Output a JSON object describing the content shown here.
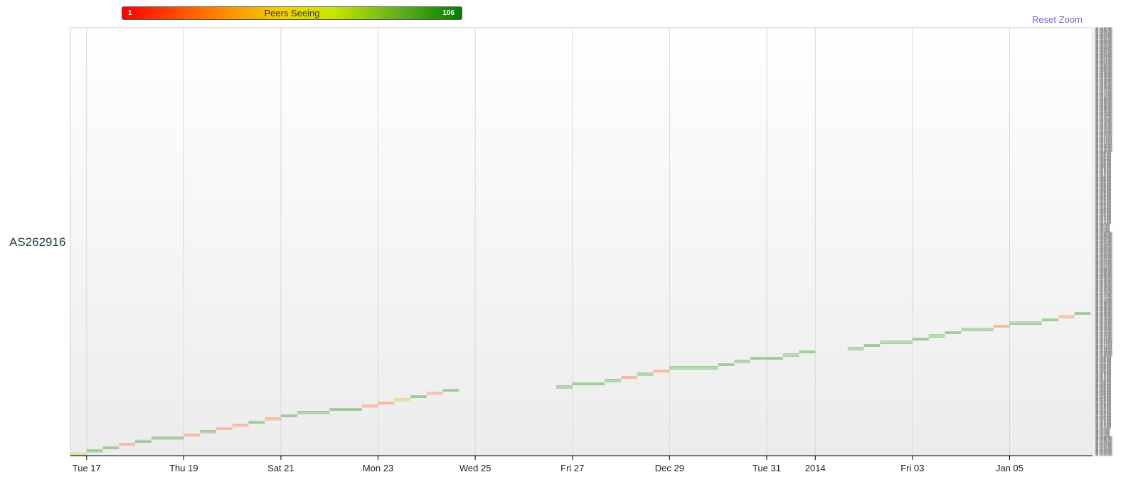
{
  "legend": {
    "title": "Peers Seeing",
    "min_label": "1",
    "max_label": "106",
    "min_color": "#ff0000",
    "max_color": "#008000"
  },
  "reset_zoom_label": "Reset Zoom",
  "chart_data": {
    "type": "heatmap",
    "title": "",
    "ylabel": "AS262916",
    "x_ticks": [
      "Tue 17",
      "Thu 19",
      "Sat 21",
      "Mon 23",
      "Wed 25",
      "Fri 27",
      "Dec 29",
      "Tue 31",
      "2014",
      "Fri 03",
      "Jan 05"
    ],
    "x_tick_dates": [
      "2013-12-17",
      "2013-12-19",
      "2013-12-21",
      "2013-12-23",
      "2013-12-25",
      "2013-12-27",
      "2013-12-29",
      "2013-12-31",
      "2014-01-01",
      "2014-01-03",
      "2014-01-05"
    ],
    "xlim": [
      "2013-12-16 16:00",
      "2014-01-06 18:00"
    ],
    "color_scale": {
      "label": "Peers Seeing",
      "min": 1,
      "max": 106,
      "colors": [
        "#ff0000",
        "#008000"
      ]
    },
    "rows_per_block": 4,
    "prefixes": [
      "192.133.232.0/24",
      "192.133.233.0/24",
      "192.133.234.0/24",
      "192.133.235.0/24",
      "192.133.236.0/24",
      "192.133.237.0/24",
      "192.133.238.0/24",
      "192.133.239.0/24",
      "192.133.240.0/24",
      "192.133.241.0/24",
      "192.133.242.0/24",
      "192.133.243.0/24",
      "192.133.244.0/24",
      "192.133.245.0/24",
      "192.133.246.0/24",
      "192.133.247.0/24",
      "192.133.248.0/24",
      "192.133.249.0/24",
      "192.133.250.0/24",
      "192.133.251.0/24",
      "192.133.252.0/24",
      "192.133.253.0/24",
      "192.133.254.0/24",
      "192.133.255.0/24",
      "192.134.0.0/24",
      "192.134.1.0/24",
      "192.134.2.0/24",
      "192.134.3.0/24",
      "192.134.4.0/24",
      "192.134.5.0/24",
      "192.134.6.0/24",
      "192.134.7.0/24",
      "192.134.8.0/24",
      "192.134.9.0/24",
      "192.134.10.0/24",
      "192.134.11.0/24",
      "192.134.12.0/24",
      "192.134.13.0/24",
      "192.134.14.0/24",
      "192.134.15.0/24",
      "192.134.16.0/24",
      "192.134.17.0/24",
      "192.134.18.0/24",
      "192.134.19.0/24",
      "192.134.20.0/24",
      "192.134.21.0/24",
      "192.134.22.0/24",
      "192.134.23.0/24",
      "192.134.24.0/24",
      "192.134.25.0/24",
      "192.134.26.0/24",
      "192.134.27.0/24",
      "192.134.28.0/24",
      "192.134.29.0/24",
      "192.134.30.0/24",
      "192.134.31.0/24",
      "192.134.32.0/24",
      "192.134.33.0/24",
      "192.134.34.0/24",
      "192.134.35.0/24",
      "192.134.36.0/24",
      "192.134.37.0/24",
      "192.134.38.0/24",
      "192.134.39.0/24",
      "192.134.40.0/24",
      "192.134.41.0/24",
      "192.134.42.0/24",
      "192.134.43.0/24",
      "192.134.44.0/24",
      "192.134.45.0/24",
      "192.134.46.0/24",
      "192.134.47.0/24",
      "192.134.48.0/24",
      "192.134.49.0/24",
      "192.134.50.0/24",
      "192.134.51.0/24",
      "192.134.52.0/24",
      "192.134.53.0/24",
      "192.134.54.0/24",
      "192.134.55.0/24",
      "192.134.56.0/24",
      "192.134.57.0/24",
      "192.134.58.0/24",
      "192.134.59.0/24",
      "192.134.60.0/24",
      "192.134.61.0/24",
      "192.134.62.0/24",
      "192.134.63.0/24",
      "192.134.64.0/24",
      "192.134.65.0/24",
      "192.134.66.0/24",
      "192.134.67.0/24",
      "192.134.68.0/24",
      "192.134.69.0/24",
      "192.134.70.0/24",
      "192.134.71.0/24",
      "192.134.72.0/24",
      "192.134.73.0/24",
      "192.134.74.0/24",
      "192.134.75.0/24",
      "192.134.76.0/24",
      "192.134.77.0/24",
      "192.134.78.0/24",
      "192.134.79.0/24",
      "192.134.80.0/24",
      "192.134.81.0/24",
      "192.134.82.0/24",
      "192.134.83.0/24",
      "192.134.84.0/24",
      "192.134.85.0/24",
      "192.134.86.0/24",
      "192.134.87.0/24",
      "192.134.88.0/24",
      "192.134.89.0/24",
      "192.134.90.0/24",
      "192.134.91.0/24",
      "192.134.92.0/24",
      "192.134.93.0/24",
      "192.134.94.0/24",
      "192.134.95.0/24",
      "192.134.96.0/24",
      "192.134.97.0/24",
      "192.134.98.0/24",
      "192.134.99.0/24",
      "192.134.100.0/24",
      "192.134.101.0/24",
      "192.134.102.0/24",
      "192.134.103.0/24",
      "192.134.104.0/24",
      "192.134.105.0/24",
      "192.134.106.0/24",
      "192.134.107.0/24",
      "192.134.108.0/24",
      "192.134.109.0/24",
      "192.134.110.0/24",
      "192.134.111.0/24",
      "192.134.112.0/24",
      "192.134.113.0/24",
      "192.134.114.0/24",
      "192.134.115.0/24",
      "192.134.116.0/24",
      "192.134.117.0/24",
      "192.134.118.0/24",
      "192.134.119.0/24",
      "192.134.120.0/24",
      "192.134.121.0/24",
      "192.134.122.0/24",
      "192.134.123.0/24",
      "192.134.124.0/24",
      "192.134.125.0/24",
      "192.134.126.0/24",
      "192.134.127.0/24",
      "192.134.128.0/24",
      "192.134.129.0/24",
      "192.134.130.0/24",
      "192.134.131.0/24",
      "192.134.132.0/24",
      "192.134.133.0/24",
      "192.134.134.0/24",
      "192.134.135.0/24",
      "192.134.136.0/24",
      "192.134.137.0/24",
      "192.134.138.0/24",
      "192.134.139.0/24",
      "192.134.140.0/24",
      "192.134.141.0/24",
      "192.134.142.0/24",
      "192.134.143.0/24",
      "192.134.144.0/24",
      "192.134.145.0/24",
      "192.134.146.0/24",
      "192.134.147.0/24",
      "192.134.148.0/24",
      "192.134.149.0/24",
      "192.134.150.0/24",
      "192.134.151.0/24",
      "192.134.152.0/24",
      "192.134.153.0/24",
      "192.134.154.0/24",
      "192.134.155.0/24",
      "192.134.156.0/24",
      "192.134.157.0/24",
      "192.134.158.0/24",
      "192.134.159.0/24",
      "192.134.160.0/24",
      "192.134.161.0/24",
      "192.134.162.0/24",
      "192.134.163.0/24",
      "192.134.164.0/24",
      "192.134.165.0/24",
      "192.134.166.0/24",
      "192.134.167.0/24",
      "192.134.168.0/24",
      "192.134.169.0/24",
      "192.134.170.0/24",
      "192.134.171.0/24",
      "192.134.172.0/24",
      "192.134.173.0/24",
      "192.134.174.0/24",
      "192.134.175.0/24",
      "192.134.176.0/24",
      "192.134.177.0/24",
      "192.134.178.0/24",
      "192.134.179.0/24",
      "192.134.180.0/24",
      "192.134.181.0/24",
      "192.134.182.0/24",
      "192.134.183.0/24",
      "192.134.184.0/24",
      "192.134.185.0/24",
      "192.134.186.0/24",
      "192.134.187.0/24",
      "192.134.188.0/24",
      "192.134.189.0/24",
      "192.134.190.0/24",
      "192.134.191.0/24",
      "192.134.192.0/24",
      "192.134.193.0/24",
      "192.134.194.0/24",
      "192.134.195.0/24",
      "192.134.196.0/24",
      "192.134.197.0/24",
      "192.134.198.0/24",
      "192.134.199.0/24",
      "192.134.200.0/24",
      "192.134.201.0/24",
      "192.134.202.0/24",
      "192.134.203.0/24",
      "192.134.204.0/24",
      "192.134.205.0/24",
      "192.134.206.0/24",
      "192.134.207.0/24",
      "192.134.208.0/24",
      "192.134.209.0/24",
      "192.134.210.0/24",
      "192.134.211.0/24",
      "192.134.212.0/24",
      "192.134.213.0/24",
      "192.134.214.0/24",
      "192.134.215.0/24",
      "192.134.216.0/24",
      "192.134.217.0/24",
      "192.134.218.0/24",
      "192.134.219.0/24",
      "192.134.220.0/24",
      "192.134.221.0/24",
      "192.134.222.0/24",
      "192.134.223.0/24",
      "192.134.224.0/24",
      "192.134.225.0/24",
      "192.134.226.0/24",
      "192.134.227.0/24",
      "192.134.228.0/24",
      "192.134.229.0/24",
      "192.134.230.0/24",
      "192.134.231.0/24",
      "192.134.232.0/24",
      "192.134.233.0/24",
      "192.134.234.0/24",
      "192.134.235.0/24",
      "192.134.236.0/24",
      "192.134.237.0/24",
      "192.134.238.0/24",
      "192.134.239.0/24",
      "192.134.240.0/24",
      "192.134.241.0/24",
      "192.134.242.0/24",
      "192.134.243.0/24",
      "192.134.244.0/24",
      "192.134.245.0/24",
      "192.134.246.0/24",
      "192.134.247.0/24",
      "192.134.248.0/24",
      "192.134.249.0/24",
      "192.134.250.0/24",
      "192.134.251.0/24",
      "192.134.252.0/24",
      "192.134.253.0/24",
      "192.134.254.0/24",
      "192.134.255.0/24",
      "192.135.0.0/24",
      "192.135.1.0/24",
      "192.135.2.0/24",
      "192.135.3.0/24",
      "192.135.4.0/24",
      "192.135.5.0/24",
      "192.135.6.0/24",
      "192.135.7.0/24",
      "192.135.8.0/24",
      "192.135.9.0/24",
      "192.135.10.0/24",
      "192.135.11.0/24",
      "192.135.12.0/24",
      "192.135.13.0/24",
      "192.135.14.0/24",
      "192.135.15.0/24",
      "192.135.16.0/24",
      "192.135.17.0/24",
      "192.135.18.0/24",
      "192.135.19.0/24",
      "192.135.20.0/24",
      "192.135.21.0/24",
      "192.135.22.0/24",
      "192.135.23.0/24",
      "192.135.24.0/24",
      "192.135.25.0/24",
      "192.135.26.0/24",
      "192.135.27.0/24",
      "192.135.28.0/24",
      "192.135.29.0/24",
      "192.135.30.0/24",
      "192.135.31.0/24",
      "192.135.32.0/24",
      "192.135.33.0/24",
      "192.135.34.0/24",
      "192.135.35.0/24",
      "192.135.36.0/24",
      "192.135.37.0/24",
      "192.135.38.0/24",
      "192.135.39.0/24",
      "192.135.40.0/24",
      "192.135.41.0/24",
      "192.135.42.0/24",
      "192.135.43.0/24",
      "192.135.44.0/24",
      "192.135.45.0/24",
      "192.135.46.0/24",
      "192.135.47.0/24",
      "192.135.48.0/24",
      "192.135.49.0/24",
      "192.135.50.0/24",
      "192.135.51.0/24",
      "192.135.52.0/24",
      "192.135.53.0/24",
      "192.135.54.0/24",
      "192.135.55.0/24",
      "192.135.56.0/24",
      "192.135.57.0/24",
      "192.135.58.0/24",
      "192.135.59.0/24",
      "192.135.60.0/24",
      "192.135.61.0/24",
      "192.135.62.0/24",
      "192.135.63.0/24",
      "192.135.64.0/24",
      "192.135.65.0/24",
      "192.135.66.0/24",
      "192.135.67.0/24",
      "192.135.68.0/24",
      "192.135.69.0/24",
      "192.135.70.0/24",
      "192.135.71.0/24",
      "192.135.72.0/24",
      "192.135.73.0/24",
      "192.135.74.0/24",
      "192.135.75.0/24",
      "192.135.76.0/24",
      "192.135.77.0/24",
      "192.135.78.0/24",
      "192.135.79.0/24",
      "192.135.80.0/24",
      "192.135.81.0/24",
      "192.135.82.0/24",
      "192.135.83.0/24",
      "192.135.84.0/24",
      "192.135.85.0/24",
      "192.135.86.0/24",
      "192.135.87.0/24",
      "192.135.88.0/24",
      "192.135.89.0/24",
      "192.135.90.0/24",
      "192.135.91.0/24",
      "192.135.92.0/24",
      "192.135.93.0/24",
      "192.135.94.0/24",
      "192.135.95.0/24",
      "192.135.96.0/24",
      "192.135.97.0/24",
      "192.135.98.0/24",
      "192.135.99.0/24",
      "192.135.100.0/24",
      "192.135.101.0/24",
      "192.135.102.0/24",
      "192.135.103.0/24",
      "192.135.104.0/24",
      "192.135.105.0/24",
      "192.135.106.0/24",
      "192.135.107.0/24",
      "192.135.108.0/24",
      "192.135.109.0/24",
      "192.135.110.0/24",
      "192.135.111.0/24",
      "192.135.112.0/24",
      "192.135.113.0/24",
      "192.135.114.0/24",
      "192.135.115.0/24",
      "192.135.116.0/24",
      "192.135.117.0/24",
      "192.135.118.0/24",
      "192.135.119.0/24",
      "192.135.120.0/24",
      "192.135.121.0/24",
      "192.135.122.0/24",
      "192.135.123.0/24",
      "192.135.124.0/24",
      "192.135.125.0/24",
      "192.135.126.0/24",
      "192.135.127.0/24",
      "192.135.128.0/24",
      "192.135.129.0/24",
      "192.135.130.0/24",
      "192.135.131.0/24",
      "192.135.132.0/24",
      "192.135.133.0/24",
      "192.135.134.0/24",
      "192.135.135.0/24",
      "192.135.136.0/24",
      "192.135.137.0/24",
      "192.135.138.0/24",
      "192.135.139.0/24",
      "192.135.140.0/24",
      "192.135.141.0/24",
      "192.135.142.0/24",
      "192.135.143.0/24",
      "192.135.144.0/24",
      "192.135.145.0/24",
      "192.135.146.0/24",
      "192.135.147.0/24",
      "192.135.148.0/24",
      "192.135.149.0/24",
      "192.135.150.0/24",
      "192.135.151.0/24",
      "192.135.152.0/24",
      "192.135.153.0/24",
      "192.135.154.0/24",
      "192.135.155.0/24",
      "192.135.156.0/24",
      "192.135.157.0/24",
      "192.135.158.0/24",
      "192.135.159.0/24",
      "192.135.160.0/24",
      "192.135.161.0/24",
      "192.135.162.0/24",
      "192.135.163.0/24",
      "192.135.164.0/24",
      "192.135.165.0/24",
      "192.135.166.0/24",
      "192.135.167.0/24",
      "192.135.168.0/24",
      "192.135.169.0/24",
      "192.135.170.0/24",
      "192.135.171.0/24",
      "192.135.172.0/24",
      "192.135.173.0/24",
      "192.135.174.0/24",
      "192.135.175.0/24",
      "192.135.176.0/24",
      "192.135.177.0/24",
      "192.135.178.0/24",
      "192.135.179.0/24",
      "192.135.180.0/24",
      "192.135.181.0/24",
      "192.135.182.0/24",
      "192.135.183.0/24",
      "192.135.184.0/24",
      "192.135.185.0/24",
      "192.135.186.0/24",
      "192.135.187.0/24",
      "192.135.188.0/24",
      "192.135.189.0/24",
      "192.135.190.0/24",
      "192.135.191.0/24",
      "192.135.192.0/24",
      "192.135.193.0/24",
      "192.135.194.0/24",
      "192.135.195.0/24",
      "192.135.196.0/24",
      "192.135.197.0/24",
      "192.135.198.0/24",
      "192.135.199.0/24",
      "192.135.200.0/24",
      "192.135.201.0/24",
      "192.135.202.0/24",
      "192.135.203.0/24",
      "192.135.204.0/24",
      "192.135.205.0/24",
      "192.135.206.0/24",
      "192.135.207.0/24",
      "192.135.208.0/24",
      "192.135.209.0/24",
      "192.135.210.0/24",
      "192.135.211.0/24",
      "192.135.212.0/24",
      "192.135.213.0/24",
      "192.135.214.0/24",
      "192.135.215.0/24",
      "192.135.216.0/24",
      "192.135.217.0/24",
      "192.135.218.0/24",
      "192.135.219.0/24",
      "192.135.220.0/24",
      "192.135.221.0/24",
      "192.135.222.0/24",
      "192.135.223.0/24",
      "192.135.224.0/24",
      "192.135.225.0/24",
      "192.135.226.0/24",
      "192.135.227.0/24",
      "192.135.228.0/24",
      "192.135.229.0/24",
      "192.135.230.0/24",
      "192.135.231.0/24",
      "192.135.232.0/24",
      "192.135.233.0/24",
      "192.135.234.0/24",
      "192.135.235.0/24",
      "192.135.236.0/24",
      "192.135.237.0/24",
      "192.135.238.0/24",
      "192.135.239.0/24",
      "192.135.240.0/24",
      "192.135.241.0/24",
      "192.135.242.0/24",
      "192.135.243.0/24",
      "192.135.244.0/24",
      "192.135.245.0/24",
      "192.135.246.0/24",
      "192.135.247.0/24",
      "192.135.248.0/24",
      "192.135.249.0/24",
      "192.135.250.0/24",
      "192.135.251.0/24",
      "192.135.252.0/24",
      "192.135.253.0/24",
      "192.135.254.0/24",
      "192.135.255.0/24"
    ],
    "blocks": [
      {
        "start": "2013-12-16 16:00",
        "end": "2013-12-17 00:00",
        "peers": 60
      },
      {
        "start": "2013-12-17 00:00",
        "end": "2013-12-17 08:00",
        "peers": 100
      },
      {
        "start": "2013-12-17 08:00",
        "end": "2013-12-17 16:00",
        "peers": 100
      },
      {
        "start": "2013-12-17 16:00",
        "end": "2013-12-18 00:00",
        "peers": 20
      },
      {
        "start": "2013-12-18 00:00",
        "end": "2013-12-18 08:00",
        "peers": 100
      },
      {
        "start": "2013-12-18 08:00",
        "end": "2013-12-19 00:00",
        "peers": 100
      },
      {
        "start": "2013-12-19 00:00",
        "end": "2013-12-19 08:00",
        "peers": 20
      },
      {
        "start": "2013-12-19 08:00",
        "end": "2013-12-19 16:00",
        "peers": 100
      },
      {
        "start": "2013-12-19 16:00",
        "end": "2013-12-20 00:00",
        "peers": 20
      },
      {
        "start": "2013-12-20 00:00",
        "end": "2013-12-20 08:00",
        "peers": 20
      },
      {
        "start": "2013-12-20 08:00",
        "end": "2013-12-20 16:00",
        "peers": 100
      },
      {
        "start": "2013-12-20 16:00",
        "end": "2013-12-21 00:00",
        "peers": 20
      },
      {
        "start": "2013-12-21 00:00",
        "end": "2013-12-21 08:00",
        "peers": 100
      },
      {
        "start": "2013-12-21 08:00",
        "end": "2013-12-22 00:00",
        "peers": 100
      },
      {
        "start": "2013-12-22 00:00",
        "end": "2013-12-22 16:00",
        "peers": 100
      },
      {
        "start": "2013-12-22 16:00",
        "end": "2013-12-23 00:00",
        "peers": 20
      },
      {
        "start": "2013-12-23 00:00",
        "end": "2013-12-23 08:00",
        "peers": 20
      },
      {
        "start": "2013-12-23 08:00",
        "end": "2013-12-23 16:00",
        "peers": 60
      },
      {
        "start": "2013-12-23 16:00",
        "end": "2013-12-24 00:00",
        "peers": 100
      },
      {
        "start": "2013-12-24 00:00",
        "end": "2013-12-24 08:00",
        "peers": 20
      },
      {
        "start": "2013-12-24 08:00",
        "end": "2013-12-24 16:00",
        "peers": 100
      },
      {
        "start": "2013-12-26 16:00",
        "end": "2013-12-27 00:00",
        "peers": 100
      },
      {
        "start": "2013-12-27 00:00",
        "end": "2013-12-27 16:00",
        "peers": 100
      },
      {
        "start": "2013-12-27 16:00",
        "end": "2013-12-28 00:00",
        "peers": 100
      },
      {
        "start": "2013-12-28 00:00",
        "end": "2013-12-28 08:00",
        "peers": 20
      },
      {
        "start": "2013-12-28 08:00",
        "end": "2013-12-28 16:00",
        "peers": 100
      },
      {
        "start": "2013-12-28 16:00",
        "end": "2013-12-29 00:00",
        "peers": 20
      },
      {
        "start": "2013-12-29 00:00",
        "end": "2013-12-30 00:00",
        "peers": 100
      },
      {
        "start": "2013-12-30 00:00",
        "end": "2013-12-30 08:00",
        "peers": 100
      },
      {
        "start": "2013-12-30 08:00",
        "end": "2013-12-30 16:00",
        "peers": 100
      },
      {
        "start": "2013-12-30 16:00",
        "end": "2013-12-31 08:00",
        "peers": 100
      },
      {
        "start": "2013-12-31 08:00",
        "end": "2013-12-31 16:00",
        "peers": 100
      },
      {
        "start": "2013-12-31 16:00",
        "end": "2014-01-01 00:00",
        "peers": 100
      },
      {
        "start": "2014-01-01 16:00",
        "end": "2014-01-02 00:00",
        "peers": 100
      },
      {
        "start": "2014-01-02 00:00",
        "end": "2014-01-02 08:00",
        "peers": 100
      },
      {
        "start": "2014-01-02 08:00",
        "end": "2014-01-03 00:00",
        "peers": 100
      },
      {
        "start": "2014-01-03 00:00",
        "end": "2014-01-03 08:00",
        "peers": 100
      },
      {
        "start": "2014-01-03 08:00",
        "end": "2014-01-03 16:00",
        "peers": 100
      },
      {
        "start": "2014-01-03 16:00",
        "end": "2014-01-04 00:00",
        "peers": 100
      },
      {
        "start": "2014-01-04 00:00",
        "end": "2014-01-04 16:00",
        "peers": 100
      },
      {
        "start": "2014-01-04 16:00",
        "end": "2014-01-05 00:00",
        "peers": 20
      },
      {
        "start": "2014-01-05 00:00",
        "end": "2014-01-05 16:00",
        "peers": 100
      },
      {
        "start": "2014-01-05 16:00",
        "end": "2014-01-06 00:00",
        "peers": 100
      },
      {
        "start": "2014-01-06 00:00",
        "end": "2014-01-06 08:00",
        "peers": 20
      },
      {
        "start": "2014-01-06 08:00",
        "end": "2014-01-06 16:00",
        "peers": 100
      }
    ]
  }
}
